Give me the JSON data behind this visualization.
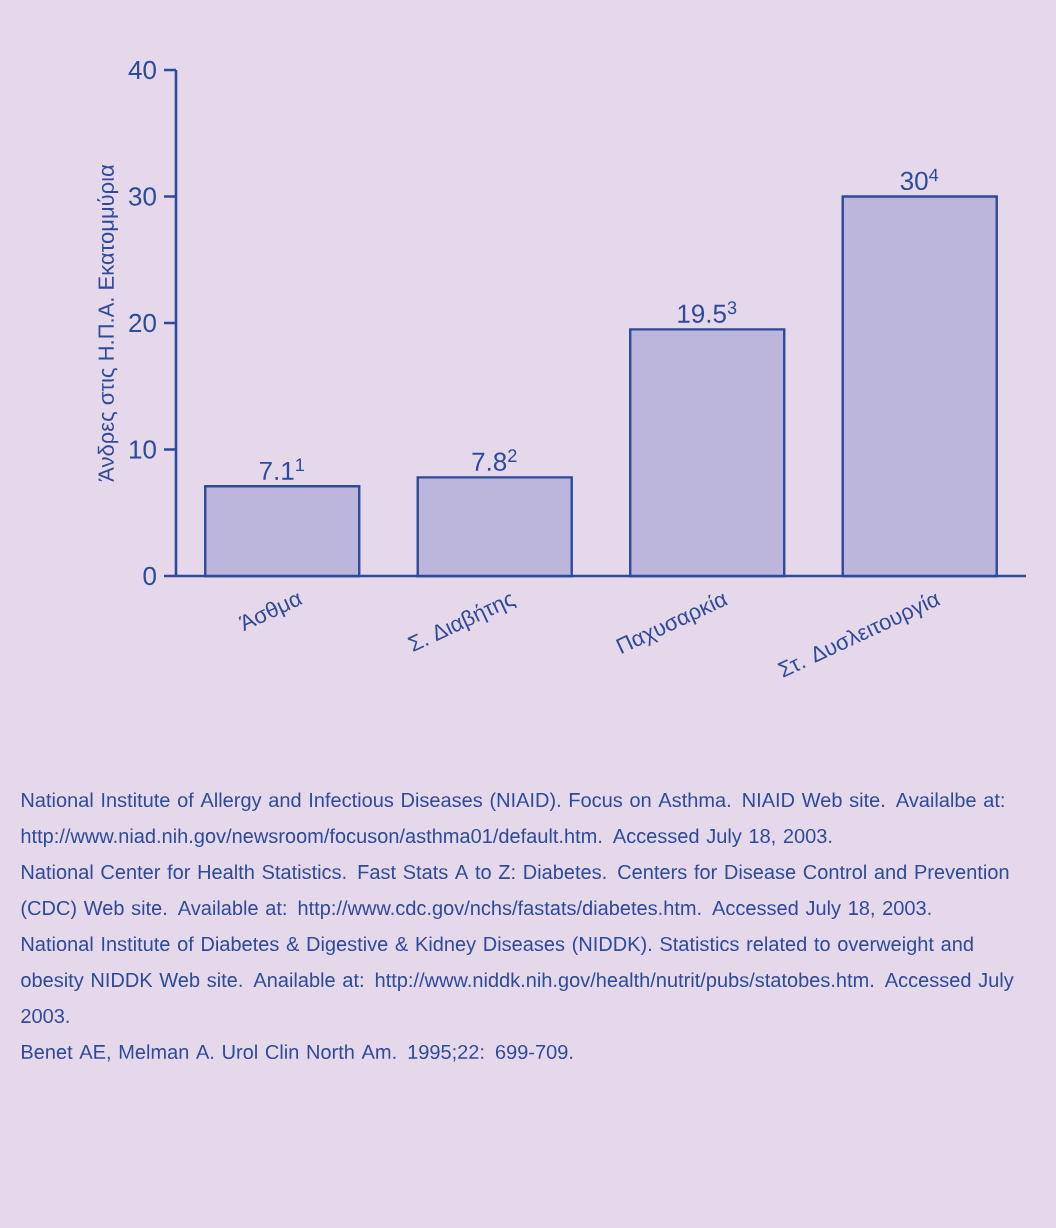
{
  "chart_data": {
    "type": "bar",
    "ylabel": "Άνδρες στις Η.Π.Α. Εκατομμύρια",
    "categories": [
      "Άσθμα",
      "Σ. Διαβήτης",
      "Παχυσαρκία",
      "Στ. Δυσλειτουργία"
    ],
    "values": [
      7.1,
      7.8,
      19.5,
      30
    ],
    "value_labels": [
      "7.1$^{1}$",
      "7.8$^{2}$",
      "19.5$^{3}$",
      "30$^{4}$"
    ],
    "color": "#bcb6dc",
    "ylim": [
      0,
      40
    ],
    "yticks": [
      0,
      10,
      20,
      30,
      40
    ],
    "annotations": [
      "National Institute of Allergy and Infectious Diseases (NIAID). Focus on Asthma. NIAID Web site. Availalbe at: http://www.niad.nih.gov/newsroom/focuson/asthma01/default.htm. Accessed July 18, 2003.",
      "National Center for Health Statistics. Fast Stats A to Z: Diabetes. Centers for Disease Control and Prevention (CDC) Web site. Available at: http://www.cdc.gov/nchs/fastats/diabetes.htm. Accessed July 18, 2003.",
      "National Institute of Diabetes & Digestive & Kidney Diseases (NIDDK). Statistics related to overweight and obesity NIDDK Web site. Anailable at: http://www.niddk.nih.gov/health/nutrit/pubs/statobes.htm. Accessed July 2003.",
      "Benet AE, Melman A. Urol Clin North Am. 1995;22: 699-709."
    ]
  }
}
